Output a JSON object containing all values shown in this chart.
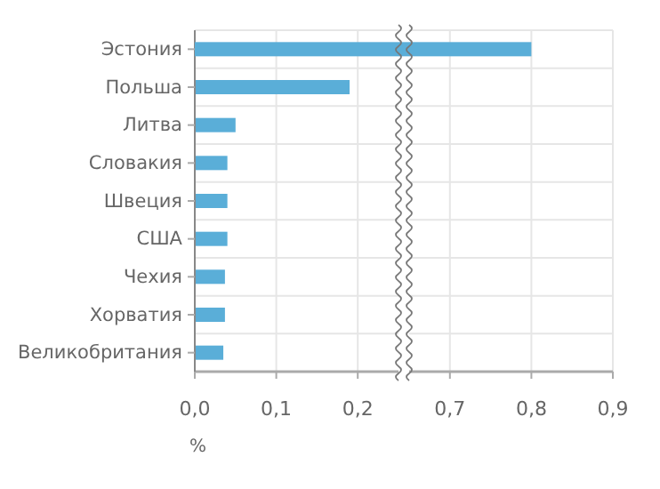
{
  "chart_data": [
    {
      "type": "bar",
      "orientation": "horizontal",
      "xlabel": "%",
      "categories": [
        "Эстония",
        "Польша",
        "Литва",
        "Словакия",
        "Швеция",
        "США",
        "Чехия",
        "Хорватия",
        "Великобритания"
      ],
      "values": [
        null,
        0.19,
        0.05,
        0.04,
        0.04,
        0.04,
        0.037,
        0.037,
        0.035
      ],
      "color": "#5aaed8",
      "xlim": [
        0,
        0.25
      ],
      "xticks": [
        {
          "value": 0,
          "label": "0,0"
        },
        {
          "value": 0.1,
          "label": "0,1"
        },
        {
          "value": 0.2,
          "label": "0,2"
        }
      ],
      "grid": true
    },
    {
      "type": "bar",
      "orientation": "horizontal",
      "categories": [
        null,
        null,
        null,
        null,
        null,
        null,
        null,
        null,
        null
      ],
      "values": [
        0.8,
        null,
        null,
        null,
        null,
        null,
        null,
        null,
        null
      ],
      "color": "#5aaed8",
      "xlim": [
        0.65,
        0.9
      ],
      "xticks": [
        {
          "value": 0.7,
          "label": "0,7"
        },
        {
          "value": 0.8,
          "label": "0,8"
        },
        {
          "value": 0.9,
          "label": "0,9"
        }
      ],
      "grid": true,
      "tick_labels": "x"
    }
  ]
}
